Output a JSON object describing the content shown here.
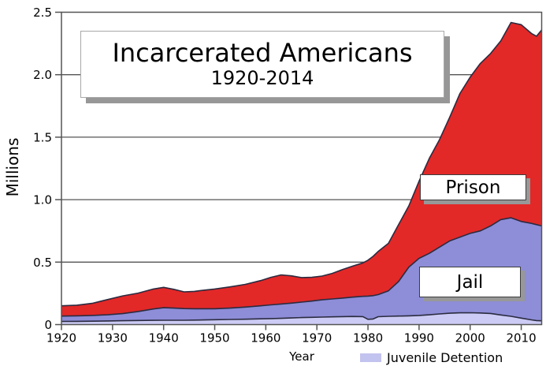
{
  "chart_data": {
    "type": "area",
    "stacked": true,
    "title": "Incarcerated Americans",
    "subtitle": "1920-2014",
    "xlabel": "Year",
    "ylabel": "Millions",
    "xlim": [
      1920,
      2014
    ],
    "ylim": [
      0,
      2.5
    ],
    "grid": "horizontal",
    "axis_color": "#545454",
    "outline_color": "#2b2b40",
    "xticks": {
      "values": [
        1920,
        1930,
        1940,
        1950,
        1960,
        1970,
        1980,
        1990,
        2000,
        2010
      ],
      "labels": [
        "1920",
        "1930",
        "1940",
        "1950",
        "1960",
        "1970",
        "1980",
        "1990",
        "2000",
        "2010"
      ]
    },
    "yticks": {
      "values": [
        0,
        0.5,
        1.0,
        1.5,
        2.0,
        2.5
      ],
      "labels": [
        "0",
        "0.5",
        "1.0",
        "1.5",
        "2.0",
        "2.5"
      ]
    },
    "x": [
      1920,
      1923,
      1926,
      1929,
      1932,
      1935,
      1938,
      1940,
      1942,
      1944,
      1946,
      1948,
      1950,
      1953,
      1956,
      1959,
      1961,
      1963,
      1965,
      1967,
      1969,
      1971,
      1973,
      1975,
      1977,
      1979,
      1980,
      1981,
      1982,
      1984,
      1986,
      1988,
      1990,
      1992,
      1994,
      1996,
      1998,
      2000,
      2002,
      2004,
      2006,
      2008,
      2010,
      2012,
      2013,
      2014
    ],
    "series": [
      {
        "name": "juvenile_detention",
        "label": "Juvenile Detention",
        "color": "#cbcbf5",
        "values": [
          0.025,
          0.026,
          0.027,
          0.029,
          0.031,
          0.033,
          0.034,
          0.035,
          0.035,
          0.035,
          0.036,
          0.037,
          0.039,
          0.041,
          0.043,
          0.046,
          0.048,
          0.05,
          0.053,
          0.056,
          0.058,
          0.06,
          0.062,
          0.064,
          0.065,
          0.064,
          0.042,
          0.045,
          0.063,
          0.066,
          0.068,
          0.07,
          0.073,
          0.078,
          0.085,
          0.091,
          0.094,
          0.095,
          0.093,
          0.089,
          0.077,
          0.066,
          0.052,
          0.038,
          0.032,
          0.03
        ]
      },
      {
        "name": "jail",
        "label": "Jail",
        "color": "#8d8dd8",
        "values": [
          0.043,
          0.044,
          0.046,
          0.049,
          0.057,
          0.072,
          0.091,
          0.1,
          0.097,
          0.093,
          0.091,
          0.09,
          0.088,
          0.091,
          0.097,
          0.104,
          0.11,
          0.115,
          0.119,
          0.124,
          0.13,
          0.138,
          0.143,
          0.148,
          0.155,
          0.162,
          0.186,
          0.187,
          0.177,
          0.204,
          0.277,
          0.39,
          0.457,
          0.492,
          0.535,
          0.579,
          0.606,
          0.635,
          0.657,
          0.701,
          0.763,
          0.789,
          0.773,
          0.772,
          0.768,
          0.76
        ]
      },
      {
        "name": "prison",
        "label": "Prison",
        "color": "#e32828",
        "values": [
          0.082,
          0.085,
          0.097,
          0.122,
          0.142,
          0.147,
          0.16,
          0.163,
          0.15,
          0.134,
          0.139,
          0.149,
          0.158,
          0.17,
          0.182,
          0.202,
          0.22,
          0.233,
          0.218,
          0.196,
          0.19,
          0.19,
          0.205,
          0.228,
          0.248,
          0.268,
          0.287,
          0.314,
          0.345,
          0.38,
          0.455,
          0.49,
          0.618,
          0.76,
          0.86,
          0.99,
          1.15,
          1.25,
          1.34,
          1.38,
          1.43,
          1.563,
          1.575,
          1.52,
          1.508,
          1.568
        ]
      }
    ],
    "annotations": [
      {
        "text": "Prison"
      },
      {
        "text": "Jail"
      }
    ],
    "legend": {
      "position": "bottom",
      "entries": [
        {
          "label": "Juvenile Detention",
          "color": "#c3c3ef"
        }
      ]
    }
  }
}
